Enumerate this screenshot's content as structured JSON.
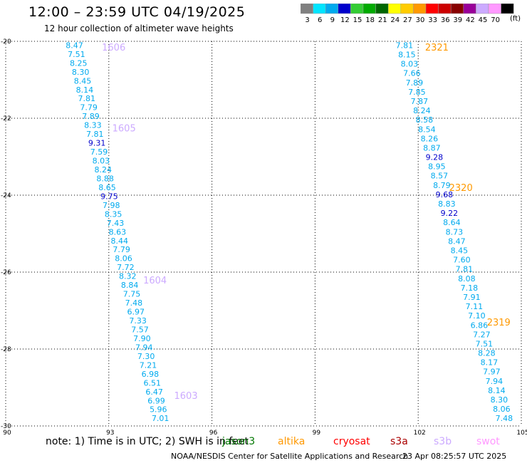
{
  "header": {
    "title": "12:00 – 23:59 UTC 04/19/2025",
    "subtitle": "12 hour collection of altimeter wave heights"
  },
  "legend": {
    "unit": "(ft)",
    "bins": [
      {
        "label": "3",
        "color": "#808080"
      },
      {
        "label": "6",
        "color": "#00e5ff"
      },
      {
        "label": "9",
        "color": "#00aaee"
      },
      {
        "label": "12",
        "color": "#0000cc"
      },
      {
        "label": "15",
        "color": "#33cc33"
      },
      {
        "label": "18",
        "color": "#00aa00"
      },
      {
        "label": "21",
        "color": "#006600"
      },
      {
        "label": "24",
        "color": "#ffff00"
      },
      {
        "label": "27",
        "color": "#ffcc00"
      },
      {
        "label": "30",
        "color": "#ff9900"
      },
      {
        "label": "33",
        "color": "#ff0000"
      },
      {
        "label": "36",
        "color": "#cc0000"
      },
      {
        "label": "39",
        "color": "#880000"
      },
      {
        "label": "42",
        "color": "#990099"
      },
      {
        "label": "45",
        "color": "#ccaaff"
      },
      {
        "label": "70",
        "color": "#ff99ff"
      },
      {
        "label": "",
        "color": "#000000"
      }
    ]
  },
  "footer": {
    "note": "note:  1) Time is in UTC;  2) SWH is in feet",
    "missions": [
      {
        "name": "jason3",
        "color": "#007700"
      },
      {
        "name": "altika",
        "color": "#ff9900"
      },
      {
        "name": "cryosat",
        "color": "#ff0000"
      },
      {
        "name": "s3a",
        "color": "#aa0000"
      },
      {
        "name": "s3b",
        "color": "#ccaaff"
      },
      {
        "name": "swot",
        "color": "#ff99ff"
      }
    ],
    "credit": "NOAA/NESDIS Center for Satellite Applications and Research",
    "timestamp": "23 Apr 08:25:57 UTC 2025"
  },
  "chart_data": {
    "type": "scatter",
    "xlim": [
      90,
      105
    ],
    "ylim": [
      -30,
      -20
    ],
    "x_ticks": [
      "90",
      "93",
      "96",
      "99",
      "102",
      "105"
    ],
    "y_ticks": [
      "-20",
      "-22",
      "-24",
      "-26",
      "-28",
      "-30"
    ],
    "grid": true,
    "tracks": [
      {
        "color": "#00aaee",
        "highlight_color": "#0000cc",
        "lat_start": -20.1,
        "lat_end": -29.8,
        "lon_start": 92.0,
        "lon_end": 94.5,
        "values": [
          "8.47",
          "7.51",
          "8.25",
          "8.30",
          "8.45",
          "8.14",
          "7.81",
          "7.79",
          "7.89",
          "8.33",
          "7.81",
          "9.31",
          "7.59",
          "8.03",
          "8.24",
          "8.88",
          "8.65",
          "9.75",
          "7.98",
          "8.35",
          "7.43",
          "8.63",
          "8.44",
          "7.79",
          "8.06",
          "7.72",
          "8.32",
          "8.84",
          "7.75",
          "7.48",
          "6.97",
          "7.33",
          "7.57",
          "7.90",
          "7.94",
          "7.30",
          "7.21",
          "6.98",
          "6.51",
          "6.47",
          "6.99",
          "5.96",
          "7.01"
        ],
        "times": [
          {
            "label": "1606",
            "lat": -20.15,
            "lon": 92.8
          },
          {
            "label": "1605",
            "lat": -22.25,
            "lon": 93.1
          },
          {
            "label": "1604",
            "lat": -26.2,
            "lon": 94.0
          },
          {
            "label": "1603",
            "lat": -29.2,
            "lon": 94.9
          }
        ],
        "time_color": "#ccaaff"
      },
      {
        "color": "#00aaee",
        "highlight_color": "#0000cc",
        "lat_start": -20.1,
        "lat_end": -29.8,
        "lon_start": 101.6,
        "lon_end": 104.5,
        "values": [
          "7.81",
          "8.15",
          "8.03",
          "7.66",
          "7.89",
          "7.85",
          "7.87",
          "8.24",
          "8.58",
          "8.54",
          "8.26",
          "8.87",
          "9.28",
          "8.95",
          "8.57",
          "8.79",
          "9.68",
          "8.83",
          "9.22",
          "8.64",
          "8.73",
          "8.47",
          "8.45",
          "7.60",
          "7.81",
          "8.08",
          "7.18",
          "7.91",
          "7.11",
          "7.10",
          "6.86",
          "7.27",
          "7.51",
          "8.28",
          "8.17",
          "7.97",
          "7.94",
          "8.14",
          "8.30",
          "8.06",
          "7.48"
        ],
        "times": [
          {
            "label": "2321",
            "lat": -20.15,
            "lon": 102.2
          },
          {
            "label": "2320",
            "lat": -23.8,
            "lon": 102.9
          },
          {
            "label": "2319",
            "lat": -27.3,
            "lon": 104.0
          }
        ],
        "time_color": "#ff9900"
      }
    ]
  }
}
